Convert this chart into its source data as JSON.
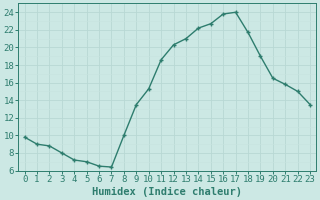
{
  "x": [
    0,
    1,
    2,
    3,
    4,
    5,
    6,
    7,
    8,
    9,
    10,
    11,
    12,
    13,
    14,
    15,
    16,
    17,
    18,
    19,
    20,
    21,
    22,
    23
  ],
  "y": [
    9.8,
    9.0,
    8.8,
    8.0,
    7.2,
    7.0,
    6.5,
    6.4,
    10.0,
    13.5,
    15.3,
    18.6,
    20.3,
    21.0,
    22.2,
    22.7,
    23.8,
    24.0,
    21.7,
    19.0,
    16.5,
    15.8,
    15.0,
    13.5
  ],
  "line_color": "#2e7d6e",
  "marker": "+",
  "bg_color": "#cce8e4",
  "grid_major_color": "#b8d8d4",
  "grid_minor_color": "#c8e4e0",
  "xlabel": "Humidex (Indice chaleur)",
  "ylim": [
    6,
    25
  ],
  "xlim": [
    -0.5,
    23.5
  ],
  "yticks": [
    6,
    8,
    10,
    12,
    14,
    16,
    18,
    20,
    22,
    24
  ],
  "xticks": [
    0,
    1,
    2,
    3,
    4,
    5,
    6,
    7,
    8,
    9,
    10,
    11,
    12,
    13,
    14,
    15,
    16,
    17,
    18,
    19,
    20,
    21,
    22,
    23
  ],
  "tick_color": "#2e7d6e",
  "spine_color": "#2e7d6e",
  "xlabel_fontsize": 7.5,
  "tick_fontsize": 6.5,
  "linewidth": 1.0,
  "markersize": 3.5,
  "markeredgewidth": 1.0
}
